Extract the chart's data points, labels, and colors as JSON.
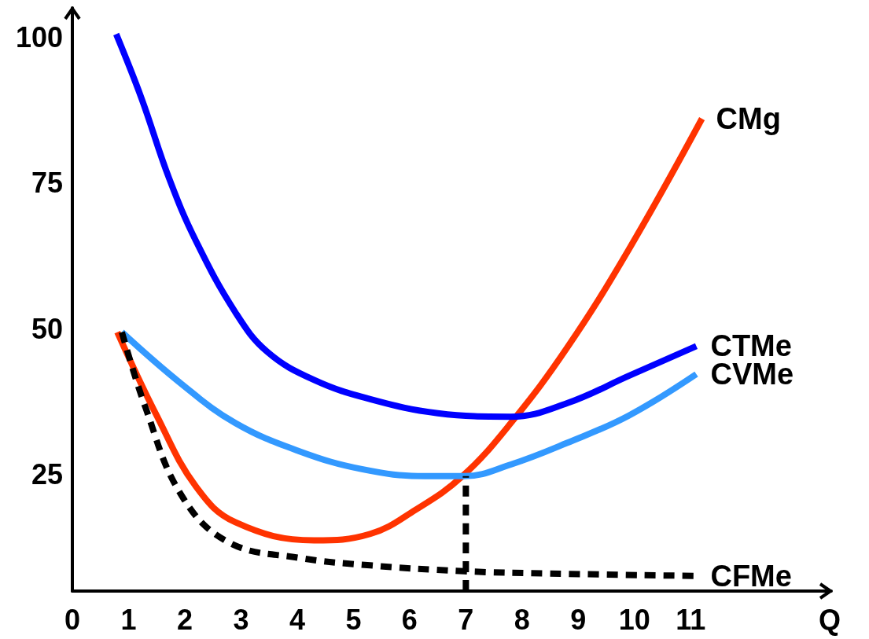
{
  "chart_data": {
    "type": "line",
    "xlabel": "Q",
    "xlim": [
      0,
      13.5
    ],
    "xticks": [
      0,
      1,
      2,
      3,
      4,
      5,
      6,
      7,
      8,
      9,
      10,
      11
    ],
    "ylim": [
      5,
      105
    ],
    "yticks": [
      25,
      50,
      75,
      100
    ],
    "marker": "none",
    "line_style": "solid",
    "series": [
      {
        "name": "CMg",
        "color": "#ff3300",
        "x": [
          0.8,
          1.5,
          2.2,
          2.9,
          4.3,
          5.3,
          6.1,
          6.94,
          7.8,
          8.8,
          9.9,
          11.2
        ],
        "values": [
          49.4,
          35.1,
          22.9,
          16.8,
          13.7,
          14.8,
          18.9,
          24.7,
          33.8,
          46.7,
          63.6,
          86
        ]
      },
      {
        "name": "CTMe",
        "color": "#0000ff",
        "x": [
          0.78,
          1.23,
          1.72,
          2.2,
          2.9,
          3.47,
          4.3,
          5.3,
          6.5,
          7.8,
          8.8,
          9.9,
          11.1
        ],
        "values": [
          100.5,
          89.5,
          75.8,
          65,
          52.8,
          46,
          41.2,
          37.9,
          35.5,
          34.9,
          37.2,
          41.9,
          47
        ]
      },
      {
        "name": "CVMe",
        "color": "#3399ff",
        "x": [
          0.88,
          1.93,
          2.9,
          4.03,
          5.15,
          6.27,
          6.97,
          7.8,
          8.8,
          9.9,
          11.1
        ],
        "values": [
          49.4,
          40.6,
          33.8,
          29,
          25.9,
          24.7,
          24.7,
          26.7,
          30.4,
          35.1,
          42.2
        ]
      },
      {
        "name": "CFMe",
        "color": "#000000",
        "line_style": "dashed",
        "x": [
          0.88,
          1.3,
          1.93,
          2.77,
          4.03,
          5.3,
          6.97,
          8.5,
          11.1
        ],
        "values": [
          49.4,
          36.5,
          21.6,
          13.4,
          10.7,
          9.4,
          8.4,
          8,
          7.6
        ]
      },
      {
        "color": "#000000",
        "line_style": "dashed",
        "x": [
          7,
          7
        ],
        "values": [
          5,
          24.7
        ]
      }
    ]
  }
}
